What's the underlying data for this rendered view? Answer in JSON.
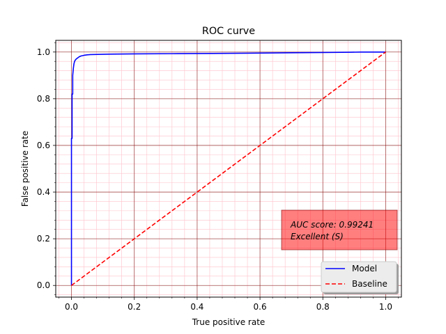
{
  "chart_data": {
    "type": "line",
    "title": "ROC curve",
    "xlabel": "True positive rate",
    "ylabel": "False positive rate",
    "xlim": [
      -0.05,
      1.05
    ],
    "ylim": [
      -0.05,
      1.05
    ],
    "xticks": [
      "0.0",
      "0.2",
      "0.4",
      "0.6",
      "0.8",
      "1.0"
    ],
    "yticks": [
      "0.0",
      "0.2",
      "0.4",
      "0.6",
      "0.8",
      "1.0"
    ],
    "grid": {
      "major": true,
      "minor": true
    },
    "series": [
      {
        "name": "Model",
        "color": "#0000ff",
        "style": "solid",
        "x": [
          0.0,
          0.0,
          0.002,
          0.002,
          0.004,
          0.004,
          0.006,
          0.008,
          0.01,
          0.012,
          0.015,
          0.02,
          0.025,
          0.03,
          0.04,
          0.05,
          0.06,
          0.12,
          0.2,
          0.32,
          0.45,
          0.56,
          0.7,
          0.8,
          0.89,
          0.92,
          1.0
        ],
        "y": [
          0.0,
          0.63,
          0.63,
          0.82,
          0.82,
          0.9,
          0.93,
          0.95,
          0.96,
          0.965,
          0.97,
          0.975,
          0.98,
          0.983,
          0.986,
          0.988,
          0.989,
          0.991,
          0.992,
          0.993,
          0.994,
          0.995,
          0.997,
          0.998,
          0.999,
          1.0,
          1.0
        ]
      },
      {
        "name": "Baseline",
        "color": "#ff0000",
        "style": "dashed",
        "x": [
          0.0,
          1.0
        ],
        "y": [
          0.0,
          1.0
        ]
      }
    ],
    "legend": {
      "placement": "lower right"
    },
    "annotation": {
      "line1": "AUC score: 0.99241",
      "line2": "Excellent (S)",
      "color": "#ff0000"
    }
  }
}
